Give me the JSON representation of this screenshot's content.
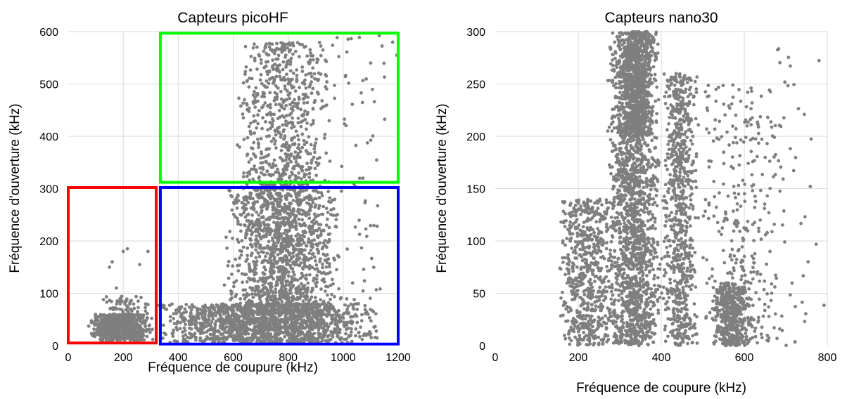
{
  "chart_data": [
    {
      "type": "scatter",
      "title": "Capteurs picoHF",
      "xlabel": "Fréquence de coupure (kHz)",
      "ylabel": "Fréquence d'ouverture (kHz)",
      "xlim": [
        0,
        1200
      ],
      "ylim": [
        0,
        600
      ],
      "xticks": [
        0,
        200,
        400,
        600,
        800,
        1000,
        1200
      ],
      "yticks": [
        0,
        100,
        200,
        300,
        400,
        500,
        600
      ],
      "grid": true,
      "marker_color": "#7f7f7f",
      "series": [
        {
          "clusters": [
            {
              "x": [
                70,
                310
              ],
              "y": [
                10,
                60
              ],
              "count": 650
            },
            {
              "x": [
                120,
                300
              ],
              "y": [
                55,
                95
              ],
              "count": 60
            },
            {
              "x": [
                310,
                1150
              ],
              "y": [
                5,
                80
              ],
              "count": 1500
            },
            {
              "x": [
                560,
                1000
              ],
              "y": [
                60,
                300
              ],
              "count": 1300
            },
            {
              "x": [
                600,
                960
              ],
              "y": [
                300,
                580
              ],
              "count": 650
            },
            {
              "x": [
                900,
                1200
              ],
              "y": [
                60,
                600
              ],
              "count": 80
            }
          ],
          "points": [
            {
              "x": 150,
              "y": 150
            },
            {
              "x": 160,
              "y": 160
            },
            {
              "x": 200,
              "y": 180
            },
            {
              "x": 215,
              "y": 185
            },
            {
              "x": 260,
              "y": 155
            },
            {
              "x": 290,
              "y": 180
            },
            {
              "x": 175,
              "y": 110
            },
            {
              "x": 1100,
              "y": 540
            },
            {
              "x": 1180,
              "y": 580
            },
            {
              "x": 1195,
              "y": 555
            }
          ]
        }
      ],
      "boxes": [
        {
          "color": "#ff0000",
          "x": [
            0,
            320
          ],
          "y": [
            5,
            302
          ]
        },
        {
          "color": "#0000ff",
          "x": [
            335,
            1200
          ],
          "y": [
            3,
            302
          ]
        },
        {
          "color": "#00ff00",
          "x": [
            335,
            1200
          ],
          "y": [
            312,
            597
          ]
        }
      ]
    },
    {
      "type": "scatter",
      "title": "Capteurs nano30",
      "xlabel": "Fréquence de coupure (kHz)",
      "ylabel": "Fréquence d'ouverture (kHz)",
      "xlim": [
        0,
        800
      ],
      "ylim": [
        0,
        300
      ],
      "xticks": [
        0,
        200,
        400,
        600,
        800
      ],
      "yticks": [
        0,
        50,
        100,
        150,
        200,
        250,
        300
      ],
      "grid": true,
      "marker_color": "#7f7f7f",
      "series": [
        {
          "clusters": [
            {
              "x": [
                270,
                400
              ],
              "y": [
                0,
                300
              ],
              "count": 1900
            },
            {
              "x": [
                300,
                380
              ],
              "y": [
                200,
                300
              ],
              "count": 600
            },
            {
              "x": [
                150,
                300
              ],
              "y": [
                0,
                140
              ],
              "count": 650
            },
            {
              "x": [
                400,
                490
              ],
              "y": [
                0,
                260
              ],
              "count": 800
            },
            {
              "x": [
                520,
                620
              ],
              "y": [
                0,
                60
              ],
              "count": 450
            },
            {
              "x": [
                480,
                700
              ],
              "y": [
                0,
                250
              ],
              "count": 300
            },
            {
              "x": [
                600,
                800
              ],
              "y": [
                0,
                290
              ],
              "count": 60
            }
          ],
          "points": []
        }
      ]
    }
  ]
}
